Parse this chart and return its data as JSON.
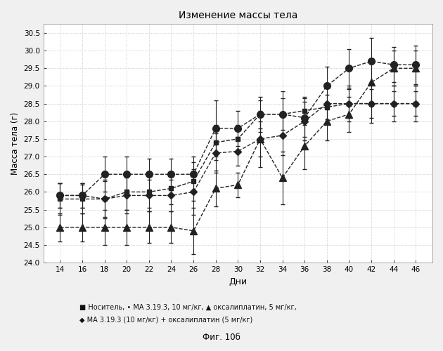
{
  "title": "Изменение массы тела",
  "xlabel": "Дни",
  "ylabel": "Масса тела (г)",
  "caption": "Фиг. 10б",
  "ylim": [
    24.0,
    30.75
  ],
  "yticks": [
    24.0,
    24.5,
    25.0,
    25.5,
    26.0,
    26.5,
    27.0,
    27.5,
    28.0,
    28.5,
    29.0,
    29.5,
    30.0,
    30.5
  ],
  "xticks": [
    14,
    16,
    18,
    20,
    22,
    24,
    26,
    28,
    30,
    32,
    34,
    36,
    38,
    40,
    42,
    44,
    46
  ],
  "days": [
    14,
    16,
    18,
    20,
    22,
    24,
    26,
    28,
    30,
    32,
    34,
    36,
    38,
    40,
    42,
    44,
    46
  ],
  "series": {
    "nositel": {
      "label": "Носитель",
      "marker": "s",
      "linestyle": "--",
      "color": "#222222",
      "y": [
        25.8,
        25.8,
        25.8,
        26.0,
        26.0,
        26.1,
        26.3,
        27.4,
        27.5,
        28.2,
        28.2,
        28.3,
        28.4,
        28.5,
        28.5,
        28.5,
        28.5
      ],
      "yerr": [
        0.45,
        0.4,
        0.5,
        0.5,
        0.45,
        0.45,
        0.55,
        0.5,
        0.4,
        0.4,
        0.45,
        0.4,
        0.35,
        0.4,
        0.4,
        0.35,
        0.35
      ]
    },
    "ma3193": {
      "label": "МА 3.19.3, 10 мг/кг",
      "marker": "o",
      "linestyle": "--",
      "color": "#222222",
      "y": [
        25.9,
        25.9,
        26.5,
        26.5,
        26.5,
        26.5,
        26.5,
        27.8,
        27.8,
        28.2,
        28.2,
        28.1,
        29.0,
        29.5,
        29.7,
        29.6,
        29.6
      ],
      "yerr": [
        0.35,
        0.35,
        0.5,
        0.5,
        0.45,
        0.45,
        0.5,
        0.8,
        0.5,
        0.5,
        0.65,
        0.55,
        0.55,
        0.55,
        0.65,
        0.5,
        0.55
      ]
    },
    "oxaliplatin": {
      "label": "оксалиплатин, 5 мг/кг",
      "marker": "^",
      "linestyle": "--",
      "color": "#222222",
      "y": [
        25.0,
        25.0,
        25.0,
        25.0,
        25.0,
        25.0,
        24.9,
        26.1,
        26.2,
        27.5,
        26.4,
        27.3,
        28.0,
        28.2,
        29.1,
        29.5,
        29.5
      ],
      "yerr": [
        0.4,
        0.4,
        0.5,
        0.5,
        0.45,
        0.45,
        0.65,
        0.5,
        0.35,
        0.8,
        0.75,
        0.65,
        0.55,
        0.5,
        0.55,
        0.5,
        0.5
      ]
    },
    "combo": {
      "label": "МА 3.19.3 (10 мг/кг) + оксалиплатин (5 мг/кг)",
      "marker": "D",
      "linestyle": "--",
      "color": "#222222",
      "y": [
        25.9,
        25.9,
        25.8,
        25.9,
        25.9,
        25.9,
        26.0,
        27.1,
        27.15,
        27.5,
        27.6,
        28.0,
        28.5,
        28.5,
        28.5,
        28.5,
        28.5
      ],
      "yerr": [
        0.35,
        0.35,
        0.55,
        0.5,
        0.45,
        0.45,
        0.65,
        0.55,
        0.4,
        0.5,
        0.55,
        0.55,
        0.55,
        0.5,
        0.55,
        0.5,
        0.5
      ]
    }
  },
  "legend_line1": "■ Носитель, • МА 3.19.3, 10 мг/кг, ▲ оксалиплатин, 5 мг/кг,",
  "legend_line2": "◆ МА 3.19.3 (10 мг/кг) + оксалиплатин (5 мг/кг)",
  "background_color": "#f0f0f0",
  "plot_bg_color": "#ffffff"
}
